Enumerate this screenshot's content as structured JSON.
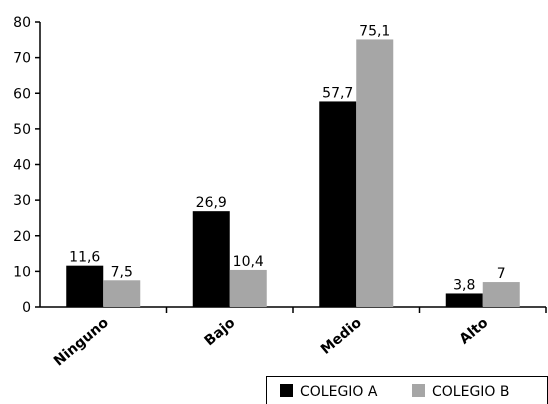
{
  "chart_data": {
    "type": "bar",
    "title": "",
    "xlabel": "",
    "ylabel": "",
    "categories": [
      "Ninguno",
      "Bajo",
      "Medio",
      "Alto"
    ],
    "series": [
      {
        "name": "COLEGIO A",
        "values": [
          11.6,
          26.9,
          57.7,
          3.8
        ],
        "labels": [
          "11,6",
          "26,9",
          "57,7",
          "3,8"
        ],
        "color": "#000000"
      },
      {
        "name": "COLEGIO B",
        "values": [
          7.5,
          10.4,
          75.1,
          7.0
        ],
        "labels": [
          "7,5",
          "10,4",
          "75,1",
          "7"
        ],
        "color": "#a6a6a6"
      }
    ],
    "ylim": [
      0,
      80
    ],
    "yticks": [
      0,
      10,
      20,
      30,
      40,
      50,
      60,
      70,
      80
    ],
    "grid": false,
    "legend": "bottom-right"
  }
}
